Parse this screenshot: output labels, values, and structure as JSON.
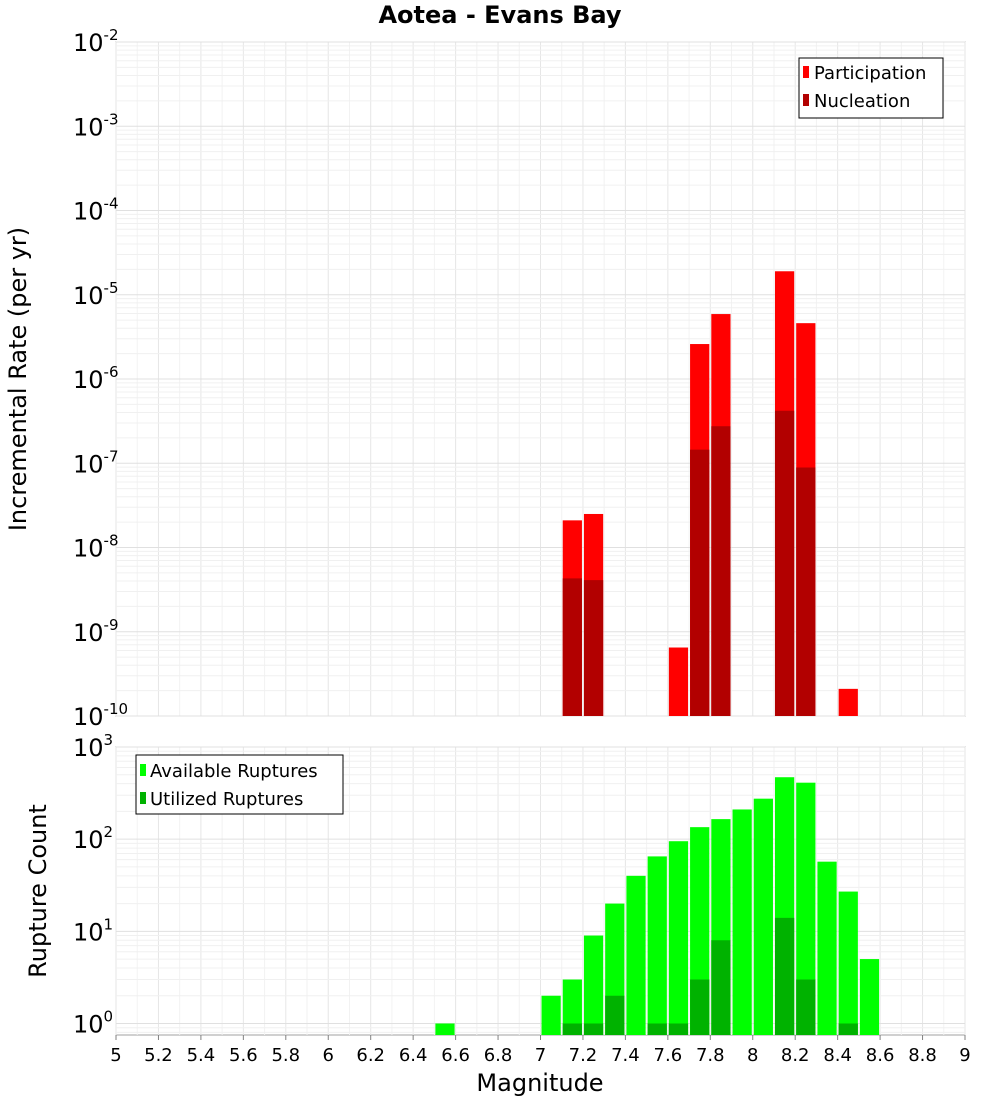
{
  "chart_data": [
    {
      "type": "bar",
      "title": "Aotea - Evans Bay",
      "xlabel": "",
      "ylabel": "Incremental Rate (per yr)",
      "xlim": [
        5,
        9
      ],
      "ylim": [
        1e-10,
        0.01
      ],
      "yscale": "log",
      "grid": true,
      "legend_position": "top-right",
      "yticks": [
        {
          "base": "10",
          "exp": "-2"
        },
        {
          "base": "10",
          "exp": "-3"
        },
        {
          "base": "10",
          "exp": "-4"
        },
        {
          "base": "10",
          "exp": "-5"
        },
        {
          "base": "10",
          "exp": "-6"
        },
        {
          "base": "10",
          "exp": "-7"
        },
        {
          "base": "10",
          "exp": "-8"
        },
        {
          "base": "10",
          "exp": "-9"
        },
        {
          "base": "10",
          "exp": "-10"
        }
      ],
      "series": [
        {
          "name": "Participation",
          "color": "#ff0000",
          "points": [
            {
              "x": 7.15,
              "y": 2.1e-08
            },
            {
              "x": 7.25,
              "y": 2.5e-08
            },
            {
              "x": 7.65,
              "y": 6.5e-10
            },
            {
              "x": 7.75,
              "y": 2.6e-06
            },
            {
              "x": 7.85,
              "y": 5.9e-06
            },
            {
              "x": 8.15,
              "y": 1.9e-05
            },
            {
              "x": 8.25,
              "y": 4.6e-06
            },
            {
              "x": 8.45,
              "y": 2.1e-10
            }
          ]
        },
        {
          "name": "Nucleation",
          "color": "#b20000",
          "points": [
            {
              "x": 7.15,
              "y": 4.3e-09
            },
            {
              "x": 7.25,
              "y": 4.1e-09
            },
            {
              "x": 7.75,
              "y": 1.45e-07
            },
            {
              "x": 7.85,
              "y": 2.75e-07
            },
            {
              "x": 8.15,
              "y": 4.2e-07
            },
            {
              "x": 8.25,
              "y": 8.9e-08
            }
          ]
        }
      ]
    },
    {
      "type": "bar",
      "title": "",
      "xlabel": "Magnitude",
      "ylabel": "Rupture Count",
      "xlim": [
        5,
        9
      ],
      "ylim": [
        0.75,
        1000
      ],
      "yscale": "log",
      "grid": true,
      "legend_position": "top-left",
      "xticks": [
        "5",
        "5.2",
        "5.4",
        "5.6",
        "5.8",
        "6",
        "6.2",
        "6.4",
        "6.6",
        "6.8",
        "7",
        "7.2",
        "7.4",
        "7.6",
        "7.8",
        "8",
        "8.2",
        "8.4",
        "8.6",
        "8.8",
        "9"
      ],
      "yticks": [
        {
          "base": "10",
          "exp": "3"
        },
        {
          "base": "10",
          "exp": "2"
        },
        {
          "base": "10",
          "exp": "1"
        },
        {
          "base": "10",
          "exp": "0"
        }
      ],
      "series": [
        {
          "name": "Available Ruptures",
          "color": "#00ff00",
          "points": [
            {
              "x": 6.55,
              "y": 1
            },
            {
              "x": 7.05,
              "y": 2
            },
            {
              "x": 7.15,
              "y": 3
            },
            {
              "x": 7.25,
              "y": 9
            },
            {
              "x": 7.35,
              "y": 20
            },
            {
              "x": 7.45,
              "y": 40
            },
            {
              "x": 7.55,
              "y": 65
            },
            {
              "x": 7.65,
              "y": 95
            },
            {
              "x": 7.75,
              "y": 135
            },
            {
              "x": 7.85,
              "y": 165
            },
            {
              "x": 7.95,
              "y": 210
            },
            {
              "x": 8.05,
              "y": 275
            },
            {
              "x": 8.15,
              "y": 470
            },
            {
              "x": 8.25,
              "y": 410
            },
            {
              "x": 8.35,
              "y": 57
            },
            {
              "x": 8.45,
              "y": 27
            },
            {
              "x": 8.55,
              "y": 5
            }
          ]
        },
        {
          "name": "Utilized Ruptures",
          "color": "#00b200",
          "points": [
            {
              "x": 7.15,
              "y": 1
            },
            {
              "x": 7.25,
              "y": 1
            },
            {
              "x": 7.35,
              "y": 2
            },
            {
              "x": 7.55,
              "y": 1
            },
            {
              "x": 7.65,
              "y": 1
            },
            {
              "x": 7.75,
              "y": 3
            },
            {
              "x": 7.85,
              "y": 8
            },
            {
              "x": 8.15,
              "y": 14
            },
            {
              "x": 8.25,
              "y": 3
            },
            {
              "x": 8.45,
              "y": 1
            }
          ]
        }
      ]
    }
  ]
}
